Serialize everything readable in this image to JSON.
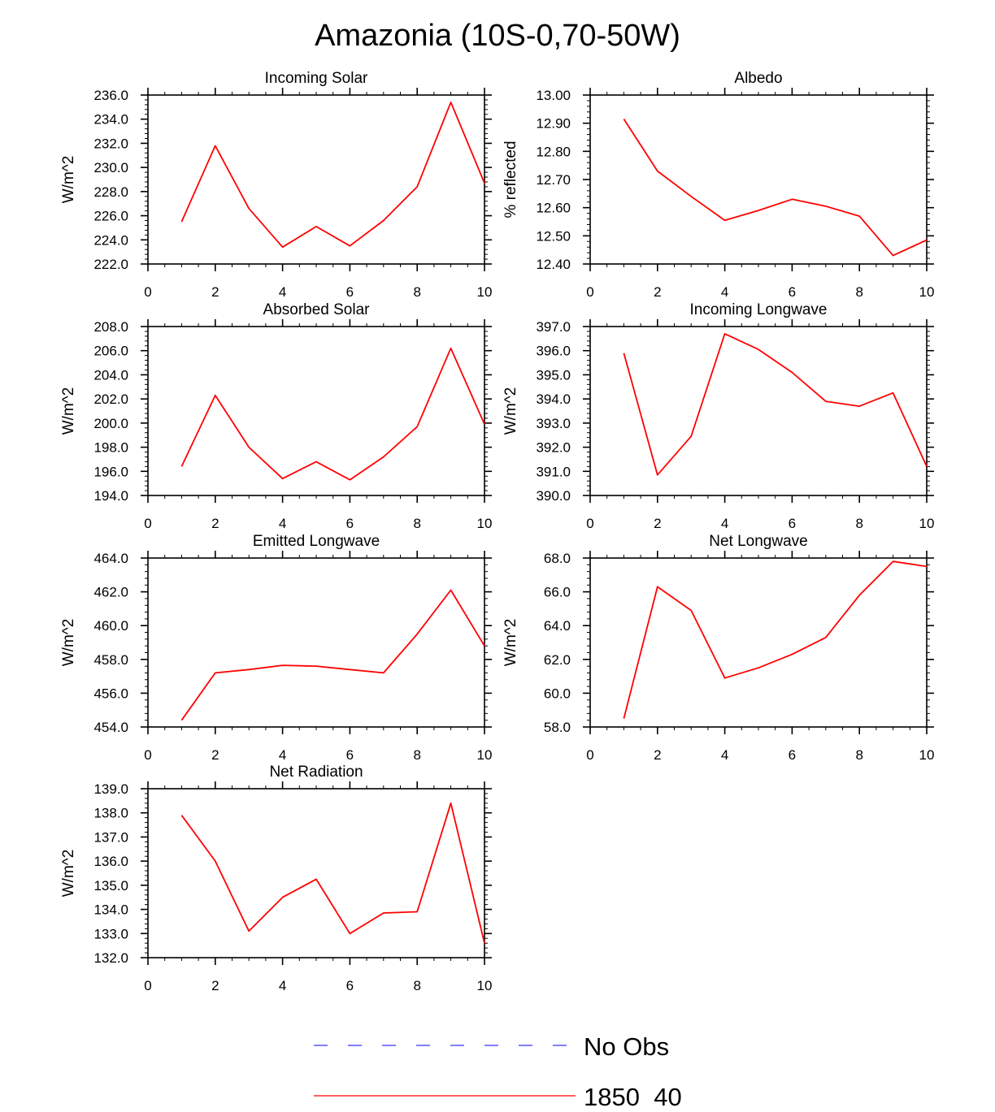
{
  "figure_title": "Amazonia (10S-0,70-50W)",
  "colors": {
    "line": "#ff0000",
    "obs": "#3333ff",
    "axis": "#000000"
  },
  "legend": [
    {
      "label": "No Obs",
      "style": "dashed",
      "color": "#3333ff"
    },
    {
      "label": "1850_40",
      "style": "solid",
      "color": "#ff0000"
    }
  ],
  "chart_data": [
    {
      "type": "line",
      "title": "Incoming Solar",
      "xlabel": "",
      "ylabel": "W/m^2",
      "xlim": [
        0,
        10
      ],
      "ylim": [
        222,
        236
      ],
      "xticks": [
        0,
        2,
        4,
        6,
        8,
        10
      ],
      "xtick_labels": [
        "0",
        "2",
        "4",
        "6",
        "8",
        "10"
      ],
      "yticks": [
        222,
        224,
        226,
        228,
        230,
        232,
        234,
        236
      ],
      "ytick_labels": [
        "222.0",
        "224.0",
        "226.0",
        "228.0",
        "230.0",
        "232.0",
        "234.0",
        "236.0"
      ],
      "series": [
        {
          "name": "1850_40",
          "x": [
            1,
            2,
            3,
            4,
            5,
            6,
            7,
            8,
            9,
            10
          ],
          "values": [
            225.5,
            231.8,
            226.6,
            223.4,
            225.1,
            223.5,
            225.6,
            228.4,
            235.4,
            228.7
          ]
        }
      ]
    },
    {
      "type": "line",
      "title": "Albedo",
      "xlabel": "",
      "ylabel": "% reflected",
      "xlim": [
        0,
        10
      ],
      "ylim": [
        12.4,
        13.0
      ],
      "xticks": [
        0,
        2,
        4,
        6,
        8,
        10
      ],
      "xtick_labels": [
        "0",
        "2",
        "4",
        "6",
        "8",
        "10"
      ],
      "yticks": [
        12.4,
        12.5,
        12.6,
        12.7,
        12.8,
        12.9,
        13.0
      ],
      "ytick_labels": [
        "12.40",
        "12.50",
        "12.60",
        "12.70",
        "12.80",
        "12.90",
        "13.00"
      ],
      "series": [
        {
          "name": "1850_40",
          "x": [
            1,
            2,
            3,
            4,
            5,
            6,
            7,
            8,
            9,
            10
          ],
          "values": [
            12.915,
            12.73,
            12.64,
            12.555,
            12.59,
            12.63,
            12.605,
            12.57,
            12.43,
            12.485
          ]
        }
      ]
    },
    {
      "type": "line",
      "title": "Absorbed Solar",
      "xlabel": "",
      "ylabel": "W/m^2",
      "xlim": [
        0,
        10
      ],
      "ylim": [
        194,
        208
      ],
      "xticks": [
        0,
        2,
        4,
        6,
        8,
        10
      ],
      "xtick_labels": [
        "0",
        "2",
        "4",
        "6",
        "8",
        "10"
      ],
      "yticks": [
        194,
        196,
        198,
        200,
        202,
        204,
        206,
        208
      ],
      "ytick_labels": [
        "194.0",
        "196.0",
        "198.0",
        "200.0",
        "202.0",
        "204.0",
        "206.0",
        "208.0"
      ],
      "series": [
        {
          "name": "1850_40",
          "x": [
            1,
            2,
            3,
            4,
            5,
            6,
            7,
            8,
            9,
            10
          ],
          "values": [
            196.4,
            202.3,
            198.0,
            195.4,
            196.8,
            195.3,
            197.2,
            199.7,
            206.2,
            199.9
          ]
        }
      ]
    },
    {
      "type": "line",
      "title": "Incoming Longwave",
      "xlabel": "",
      "ylabel": "W/m^2",
      "xlim": [
        0,
        10
      ],
      "ylim": [
        390,
        397
      ],
      "xticks": [
        0,
        2,
        4,
        6,
        8,
        10
      ],
      "xtick_labels": [
        "0",
        "2",
        "4",
        "6",
        "8",
        "10"
      ],
      "yticks": [
        390,
        391,
        392,
        393,
        394,
        395,
        396,
        397
      ],
      "ytick_labels": [
        "390.0",
        "391.0",
        "392.0",
        "393.0",
        "394.0",
        "395.0",
        "396.0",
        "397.0"
      ],
      "series": [
        {
          "name": "1850_40",
          "x": [
            1,
            2,
            3,
            4,
            5,
            6,
            7,
            8,
            9,
            10
          ],
          "values": [
            395.9,
            390.85,
            392.45,
            396.7,
            396.05,
            395.1,
            393.9,
            393.7,
            394.25,
            391.2
          ]
        }
      ]
    },
    {
      "type": "line",
      "title": "Emitted Longwave",
      "xlabel": "",
      "ylabel": "W/m^2",
      "xlim": [
        0,
        10
      ],
      "ylim": [
        454,
        464
      ],
      "xticks": [
        0,
        2,
        4,
        6,
        8,
        10
      ],
      "xtick_labels": [
        "0",
        "2",
        "4",
        "6",
        "8",
        "10"
      ],
      "yticks": [
        454,
        456,
        458,
        460,
        462,
        464
      ],
      "ytick_labels": [
        "454.0",
        "456.0",
        "458.0",
        "460.0",
        "462.0",
        "464.0"
      ],
      "series": [
        {
          "name": "1850_40",
          "x": [
            1,
            2,
            3,
            4,
            5,
            6,
            7,
            8,
            9,
            10
          ],
          "values": [
            454.4,
            457.2,
            457.4,
            457.65,
            457.6,
            457.4,
            457.2,
            459.5,
            462.1,
            458.8
          ]
        }
      ]
    },
    {
      "type": "line",
      "title": "Net Longwave",
      "xlabel": "",
      "ylabel": "W/m^2",
      "xlim": [
        0,
        10
      ],
      "ylim": [
        58,
        68
      ],
      "xticks": [
        0,
        2,
        4,
        6,
        8,
        10
      ],
      "xtick_labels": [
        "0",
        "2",
        "4",
        "6",
        "8",
        "10"
      ],
      "yticks": [
        58,
        60,
        62,
        64,
        66,
        68
      ],
      "ytick_labels": [
        "58.0",
        "60.0",
        "62.0",
        "64.0",
        "66.0",
        "68.0"
      ],
      "series": [
        {
          "name": "1850_40",
          "x": [
            1,
            2,
            3,
            4,
            5,
            6,
            7,
            8,
            9,
            10
          ],
          "values": [
            58.5,
            66.3,
            64.9,
            60.9,
            61.5,
            62.3,
            63.3,
            65.8,
            67.8,
            67.5
          ]
        }
      ]
    },
    {
      "type": "line",
      "title": "Net Radiation",
      "xlabel": "",
      "ylabel": "W/m^2",
      "xlim": [
        0,
        10
      ],
      "ylim": [
        132,
        139
      ],
      "xticks": [
        0,
        2,
        4,
        6,
        8,
        10
      ],
      "xtick_labels": [
        "0",
        "2",
        "4",
        "6",
        "8",
        "10"
      ],
      "yticks": [
        132,
        133,
        134,
        135,
        136,
        137,
        138,
        139
      ],
      "ytick_labels": [
        "132.0",
        "133.0",
        "134.0",
        "135.0",
        "136.0",
        "137.0",
        "138.0",
        "139.0"
      ],
      "series": [
        {
          "name": "1850_40",
          "x": [
            1,
            2,
            3,
            4,
            5,
            6,
            7,
            8,
            9,
            10
          ],
          "values": [
            137.9,
            136.0,
            133.1,
            134.5,
            135.25,
            133.0,
            133.85,
            133.9,
            138.4,
            132.6
          ]
        }
      ]
    }
  ]
}
